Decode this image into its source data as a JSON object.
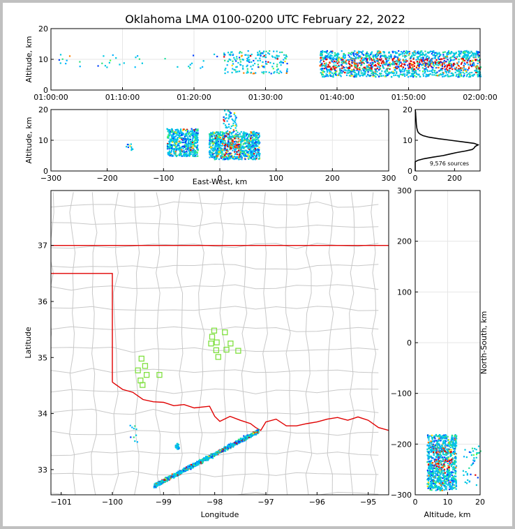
{
  "title": "Oklahoma LMA 0100-0200 UTC February 22, 2022",
  "chart_data": [
    {
      "panel": "altitude-vs-time",
      "type": "scatter",
      "ylabel": "Altitude, km",
      "ylim": [
        0,
        20
      ],
      "yticks": [
        "0",
        "10",
        "20"
      ],
      "xticks": [
        "01:00:00",
        "01:10:00",
        "01:20:00",
        "01:30:00",
        "01:40:00",
        "01:50:00",
        "02:00:00"
      ],
      "xlim_minutes_after_0100": [
        0,
        60
      ],
      "grid": true
    },
    {
      "panel": "altitude-vs-east-west",
      "type": "scatter",
      "xlabel": "East-West, km",
      "ylabel": "Altitude, km",
      "xlim": [
        -300,
        300
      ],
      "ylim": [
        0,
        20
      ],
      "xticks": [
        "−300",
        "−200",
        "−100",
        "0",
        "100",
        "200",
        "300"
      ],
      "yticks": [
        "0",
        "10",
        "20"
      ],
      "grid": true
    },
    {
      "panel": "source-count-histogram",
      "type": "line",
      "annotation": "9,576 sources",
      "xlim": [
        0,
        330
      ],
      "ylim": [
        0,
        20
      ],
      "xticks": [
        "0",
        "200"
      ],
      "yticks": [
        "0",
        "10",
        "20"
      ],
      "profile": {
        "altitude_km": [
          0,
          3,
          3.5,
          4,
          4.5,
          5,
          5.5,
          6,
          6.5,
          7,
          7.5,
          8,
          8.5,
          9,
          9.5,
          10,
          10.5,
          11,
          11.5,
          12,
          12.5,
          13,
          14,
          15,
          16,
          17,
          18,
          19,
          20
        ],
        "count": [
          0,
          0,
          15,
          45,
          90,
          140,
          175,
          210,
          255,
          290,
          300,
          305,
          320,
          300,
          240,
          180,
          120,
          70,
          40,
          25,
          16,
          12,
          8,
          6,
          5,
          4,
          3,
          2,
          0
        ]
      }
    },
    {
      "panel": "plan-view-map",
      "type": "scatter",
      "xlabel": "Longitude",
      "ylabel": "Latitude",
      "xlim": [
        -101.2,
        -94.6
      ],
      "ylim": [
        32.55,
        37.98
      ],
      "xticks": [
        "−101",
        "−100",
        "−99",
        "−98",
        "−97",
        "−96",
        "−95"
      ],
      "yticks": [
        "33",
        "34",
        "35",
        "36",
        "37"
      ],
      "stations": {
        "lon": [
          -99.43,
          -99.36,
          -99.5,
          -99.33,
          -99.45,
          -99.41,
          -99.08,
          -98.01,
          -98.05,
          -98.07,
          -97.96,
          -97.8,
          -97.69,
          -97.97,
          -97.77,
          -97.93,
          -97.54
        ],
        "lat": [
          34.98,
          34.85,
          34.77,
          34.69,
          34.59,
          34.51,
          34.69,
          35.48,
          35.37,
          35.25,
          35.27,
          35.45,
          35.25,
          35.13,
          35.14,
          35.01,
          35.12
        ]
      }
    },
    {
      "panel": "north-south-vs-altitude",
      "type": "scatter",
      "xlabel": "Altitude, km",
      "ylabel": "North-South, km",
      "xlim": [
        0,
        20
      ],
      "ylim": [
        -300,
        300
      ],
      "xticks": [
        "0",
        "10",
        "20"
      ],
      "yticks": [
        "−300",
        "−200",
        "−100",
        "0",
        "100",
        "200",
        "300"
      ],
      "grid": true
    }
  ],
  "colors": {
    "state_border": "#e00000",
    "county_lines": "#c8c8c8",
    "grid": "#e6e6e6",
    "station": "#80e040",
    "density_low": "#00c8e0",
    "density_mid": "#30e080",
    "density_high": "#e00000"
  }
}
